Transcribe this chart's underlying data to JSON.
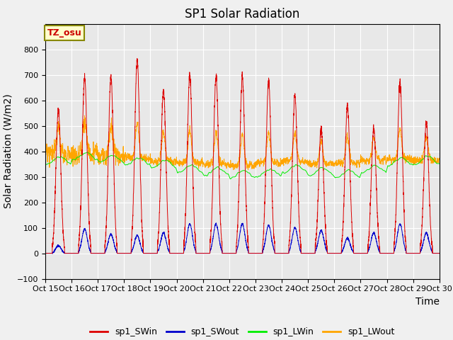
{
  "title": "SP1 Solar Radiation",
  "ylabel": "Solar Radiation (W/m2)",
  "xlabel": "Time",
  "ylim": [
    -100,
    900
  ],
  "yticks": [
    -100,
    0,
    100,
    200,
    300,
    400,
    500,
    600,
    700,
    800
  ],
  "plot_bg_color": "#e8e8e8",
  "line_colors": {
    "SWin": "#dd0000",
    "SWout": "#0000cc",
    "LWin": "#00ee00",
    "LWout": "#ffa500"
  },
  "legend_labels": [
    "sp1_SWin",
    "sp1_SWout",
    "sp1_LWin",
    "sp1_LWout"
  ],
  "tz_label": "TZ_osu",
  "tz_label_color": "#cc0000",
  "tz_bg_color": "#ffffcc",
  "x_tick_labels": [
    "Oct 15",
    "Oct 16",
    "Oct 17",
    "Oct 18",
    "Oct 19",
    "Oct 20",
    "Oct 21",
    "Oct 22",
    "Oct 23",
    "Oct 24",
    "Oct 25",
    "Oct 26",
    "Oct 27",
    "Oct 28",
    "Oct 29",
    "Oct 30"
  ],
  "n_days": 15,
  "points_per_day": 288,
  "SWin_peaks": [
    560,
    690,
    690,
    760,
    640,
    700,
    695,
    690,
    675,
    620,
    490,
    580,
    490,
    670,
    510
  ],
  "SWout_peaks": [
    30,
    95,
    75,
    70,
    80,
    115,
    115,
    115,
    110,
    100,
    90,
    60,
    80,
    115,
    80
  ],
  "LWin_bases": [
    365,
    380,
    370,
    360,
    350,
    330,
    320,
    310,
    315,
    330,
    320,
    310,
    330,
    360,
    365
  ],
  "LWout_bases": [
    390,
    395,
    385,
    375,
    360,
    355,
    350,
    345,
    355,
    360,
    350,
    355,
    365,
    370,
    365
  ],
  "grid_color": "#ffffff",
  "title_fontsize": 12,
  "label_fontsize": 10,
  "tick_fontsize": 8
}
